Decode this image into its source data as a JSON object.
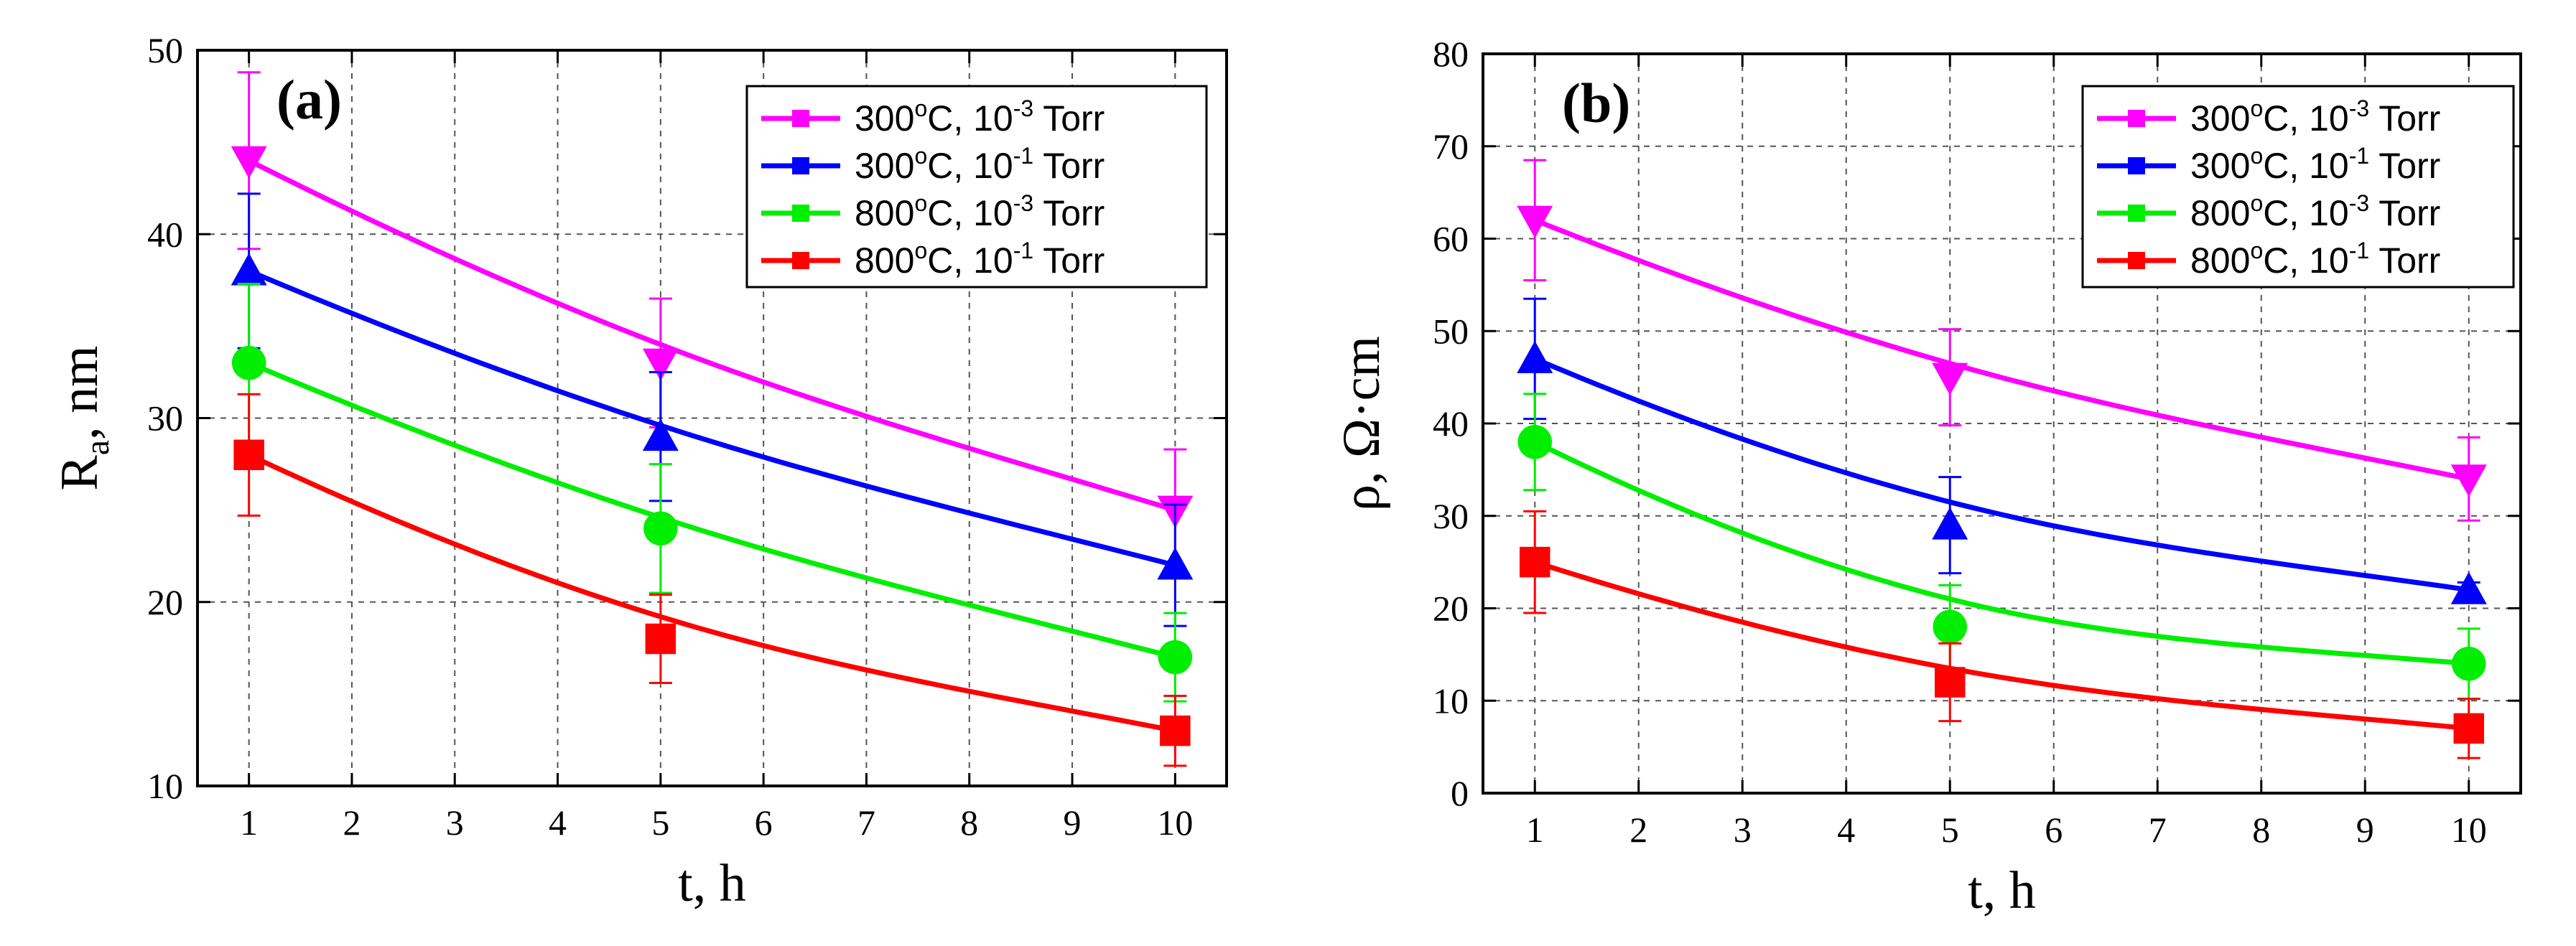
{
  "colors": {
    "magenta": "#ff00ff",
    "blue": "#0000ff",
    "green": "#00ee00",
    "red": "#ff0000"
  },
  "chart_data": [
    {
      "type": "line",
      "panel_label": "(a)",
      "xlabel": "t, h",
      "ylabel": "Ra, nm",
      "ylabel_main": "R",
      "ylabel_sub": "a",
      "ylabel_rest": ", nm",
      "xlim": [
        0.5,
        10.5
      ],
      "ylim": [
        10,
        50
      ],
      "xticks": [
        1,
        2,
        3,
        4,
        5,
        6,
        7,
        8,
        9,
        10
      ],
      "yticks": [
        10,
        20,
        30,
        40,
        50
      ],
      "grid": true,
      "legend_position": "top-right",
      "x": [
        1,
        5,
        10
      ],
      "series": [
        {
          "name": "300°C, 10-3 Torr",
          "temp": "300",
          "exp": "-3",
          "color": "#ff00ff",
          "marker": "triangle-down",
          "values": [
            44,
            33,
            25
          ],
          "errors": [
            4.8,
            3.5,
            3.3
          ],
          "fit": [
            44,
            34,
            25
          ]
        },
        {
          "name": "300°C, 10-1 Torr",
          "temp": "300",
          "exp": "-1",
          "color": "#0000ff",
          "marker": "triangle-up",
          "values": [
            38,
            29,
            22
          ],
          "errors": [
            4.2,
            3.5,
            3.3
          ],
          "fit": [
            38,
            29.6,
            22
          ]
        },
        {
          "name": "800°C, 10-3 Torr",
          "temp": "800",
          "exp": "-3",
          "color": "#00ee00",
          "marker": "circle",
          "values": [
            33,
            24,
            17
          ],
          "errors": [
            4.3,
            3.5,
            2.4
          ],
          "fit": [
            33,
            24.6,
            17
          ]
        },
        {
          "name": "800°C, 10-1 Torr",
          "temp": "800",
          "exp": "-1",
          "color": "#ff0000",
          "marker": "square",
          "values": [
            28,
            18,
            13
          ],
          "errors": [
            3.3,
            2.4,
            1.9
          ],
          "fit": [
            28,
            19.2,
            13
          ]
        }
      ]
    },
    {
      "type": "line",
      "panel_label": "(b)",
      "xlabel": "t, h",
      "ylabel": "ρ, Ω·cm",
      "ylabel_main": "ρ, Ω·cm",
      "ylabel_sub": "",
      "ylabel_rest": "",
      "xlim": [
        0.5,
        10.5
      ],
      "ylim": [
        0,
        80
      ],
      "xticks": [
        1,
        2,
        3,
        4,
        5,
        6,
        7,
        8,
        9,
        10
      ],
      "yticks": [
        0,
        10,
        20,
        30,
        40,
        50,
        60,
        70,
        80
      ],
      "grid": true,
      "legend_position": "top-right",
      "x": [
        1,
        5,
        10
      ],
      "series": [
        {
          "name": "300°C, 10-3 Torr",
          "temp": "300",
          "exp": "-3",
          "color": "#ff00ff",
          "marker": "triangle-down",
          "values": [
            62,
            45,
            34
          ],
          "errors": [
            6.5,
            5.2,
            4.5
          ],
          "fit": [
            62,
            46.5,
            34
          ]
        },
        {
          "name": "300°C, 10-1 Torr",
          "temp": "300",
          "exp": "-1",
          "color": "#0000ff",
          "marker": "triangle-up",
          "values": [
            47,
            29,
            22
          ],
          "errors": [
            6.5,
            5.2,
            0.8
          ],
          "fit": [
            47,
            31.5,
            22
          ]
        },
        {
          "name": "800°C, 10-3 Torr",
          "temp": "800",
          "exp": "-3",
          "color": "#00ee00",
          "marker": "circle",
          "values": [
            38,
            18,
            14
          ],
          "errors": [
            5.2,
            4.5,
            3.8
          ],
          "fit": [
            38,
            21,
            14
          ]
        },
        {
          "name": "800°C, 10-1 Torr",
          "temp": "800",
          "exp": "-1",
          "color": "#ff0000",
          "marker": "square",
          "values": [
            25,
            12,
            7
          ],
          "errors": [
            5.5,
            4.2,
            3.2
          ],
          "fit": [
            25,
            13.5,
            7
          ]
        }
      ]
    }
  ]
}
